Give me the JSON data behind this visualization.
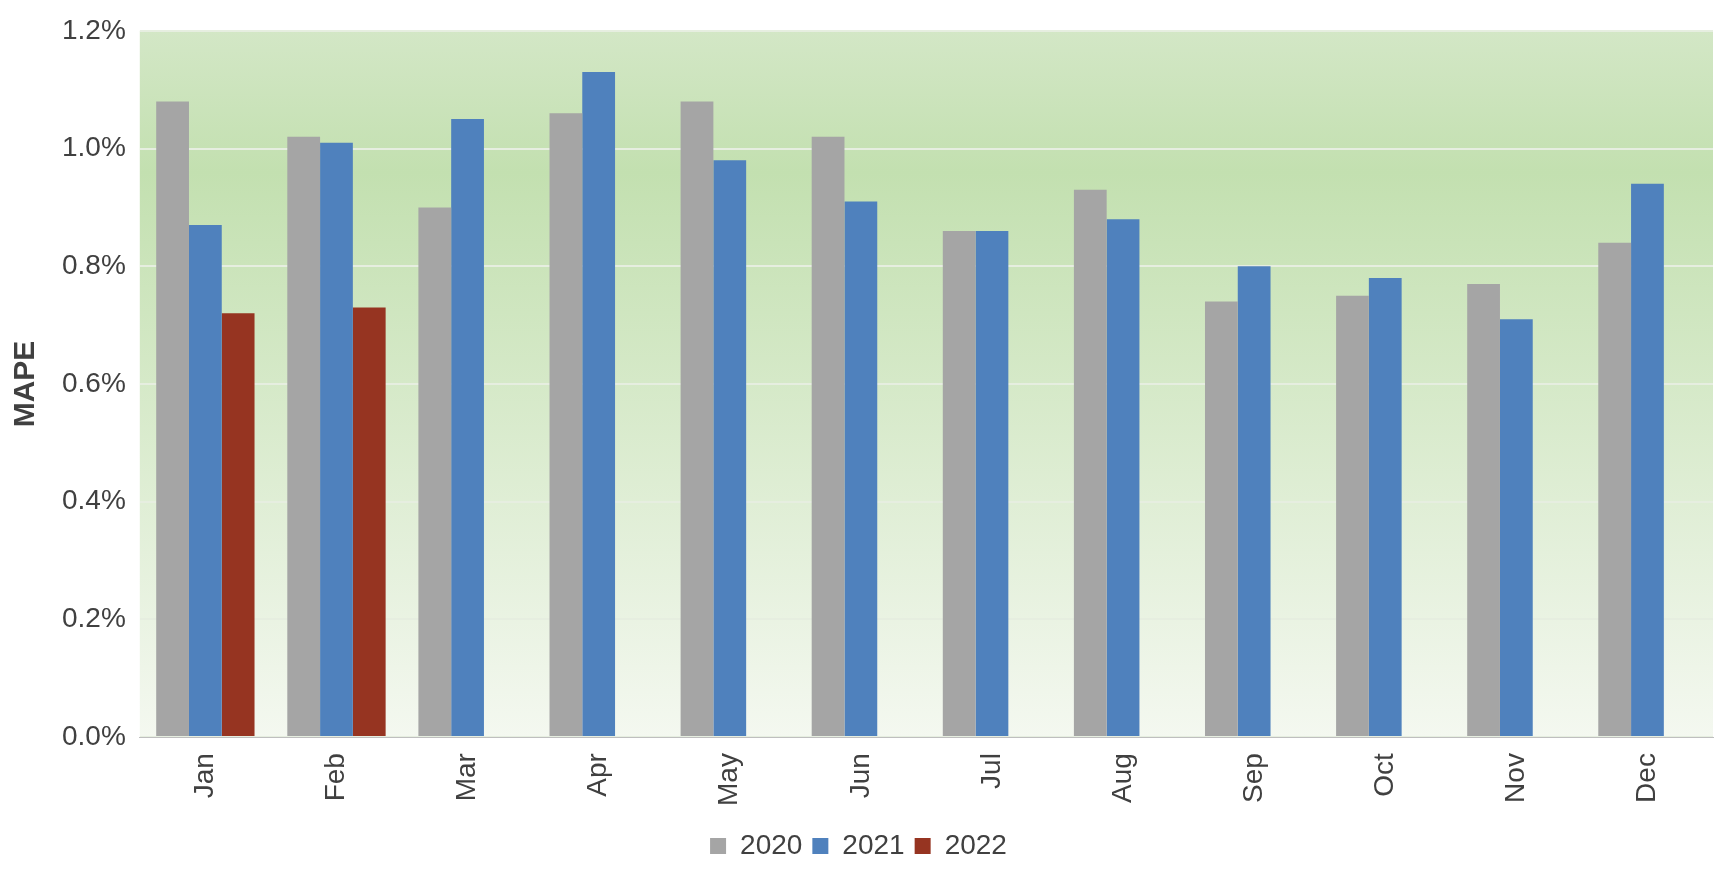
{
  "chart_data": {
    "type": "bar",
    "ylabel": "MAPE",
    "categories": [
      "Jan",
      "Feb",
      "Mar",
      "Apr",
      "May",
      "Jun",
      "Jul",
      "Aug",
      "Sep",
      "Oct",
      "Nov",
      "Dec"
    ],
    "series": [
      {
        "name": "2020",
        "color": "#a5a5a5",
        "values": [
          1.08,
          1.02,
          0.9,
          1.06,
          1.08,
          1.02,
          0.86,
          0.93,
          0.74,
          0.75,
          0.77,
          0.84
        ]
      },
      {
        "name": "2021",
        "color": "#4f81bd",
        "values": [
          0.87,
          1.01,
          1.05,
          1.13,
          0.98,
          0.91,
          0.86,
          0.88,
          0.8,
          0.78,
          0.71,
          0.94
        ]
      },
      {
        "name": "2022",
        "color": "#963421",
        "values": [
          0.72,
          0.73,
          null,
          null,
          null,
          null,
          null,
          null,
          null,
          null,
          null,
          null
        ]
      }
    ],
    "ylim": [
      0,
      1.2
    ],
    "yticks": [
      {
        "value": 0,
        "label": "0.0%"
      },
      {
        "value": 0.2,
        "label": "0.2%"
      },
      {
        "value": 0.4,
        "label": "0.4%"
      },
      {
        "value": 0.6,
        "label": "0.6%"
      },
      {
        "value": 0.8,
        "label": "0.8%"
      },
      {
        "value": 1.0,
        "label": "1.0%"
      },
      {
        "value": 1.2,
        "label": "1.2%"
      }
    ],
    "grid": "y",
    "legend": "bottom"
  }
}
